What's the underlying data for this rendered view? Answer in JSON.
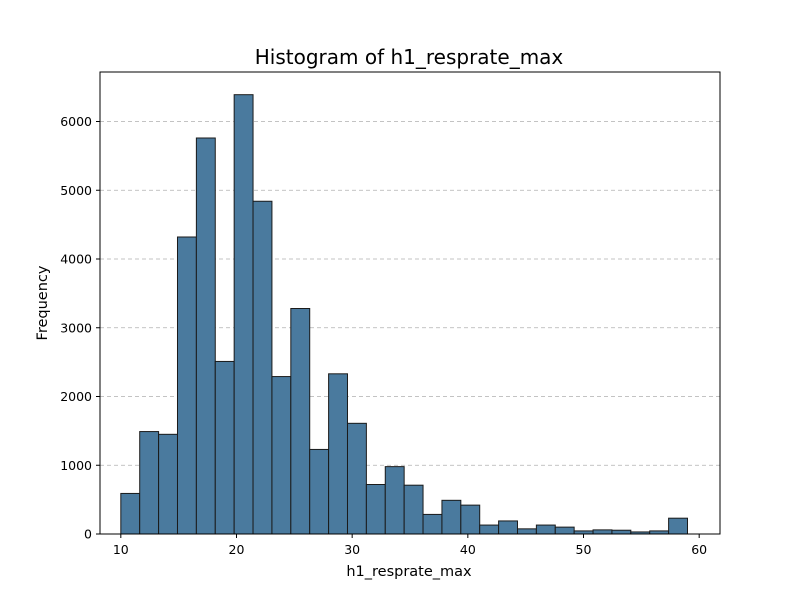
{
  "chart_data": {
    "type": "bar",
    "title": "Histogram of h1_resprate_max",
    "xlabel": "h1_resprate_max",
    "ylabel": "Frequency",
    "bin_start": 10,
    "bin_width": 1.633,
    "values": [
      590,
      1490,
      1450,
      4320,
      5760,
      2510,
      6390,
      4840,
      2290,
      3280,
      1230,
      2330,
      1610,
      720,
      980,
      710,
      285,
      490,
      420,
      130,
      190,
      75,
      130,
      100,
      45,
      60,
      55,
      30,
      45,
      230
    ],
    "xlim": [
      8.2,
      61.8
    ],
    "ylim": [
      0,
      6720
    ],
    "xticks": [
      10,
      20,
      30,
      40,
      50,
      60
    ],
    "yticks": [
      0,
      1000,
      2000,
      3000,
      4000,
      5000,
      6000
    ],
    "grid": "y-dashed",
    "bar_color": "#4a7a9e",
    "edge_color": "#1a1a1a",
    "grid_color": "#b0b0b0"
  }
}
